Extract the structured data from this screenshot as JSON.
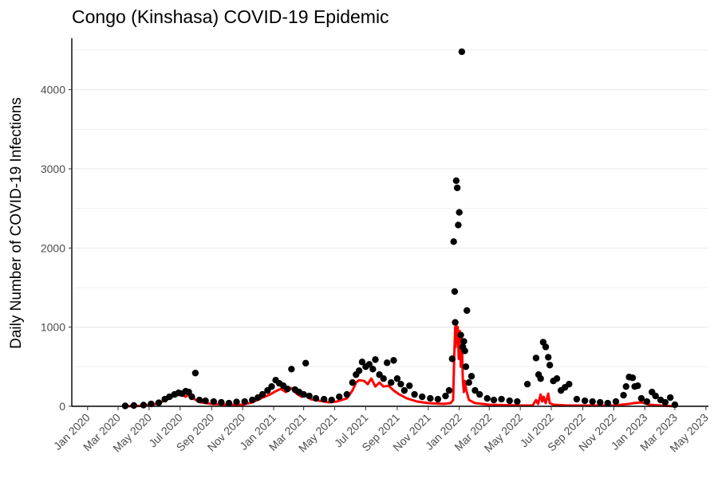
{
  "chart_data": {
    "type": "scatter",
    "title": "Congo (Kinshasa) COVID-19 Epidemic",
    "xlabel": "",
    "ylabel": "Daily Number of COVID-19 Infections",
    "xlim": [
      "2019-12-01",
      "2023-05-06"
    ],
    "ylim": [
      0,
      4650
    ],
    "y_ticks": [
      0,
      1000,
      2000,
      3000,
      4000
    ],
    "x_ticks": [
      {
        "date": "2020-01-01",
        "label": "Jan 2020"
      },
      {
        "date": "2020-03-01",
        "label": "Mar 2020"
      },
      {
        "date": "2020-05-01",
        "label": "May 2020"
      },
      {
        "date": "2020-07-01",
        "label": "Jul 2020"
      },
      {
        "date": "2020-09-01",
        "label": "Sep 2020"
      },
      {
        "date": "2020-11-01",
        "label": "Nov 2020"
      },
      {
        "date": "2021-01-01",
        "label": "Jan 2021"
      },
      {
        "date": "2021-03-01",
        "label": "Mar 2021"
      },
      {
        "date": "2021-05-01",
        "label": "May 2021"
      },
      {
        "date": "2021-07-01",
        "label": "Jul 2021"
      },
      {
        "date": "2021-09-01",
        "label": "Sep 2021"
      },
      {
        "date": "2021-11-01",
        "label": "Nov 2021"
      },
      {
        "date": "2022-01-01",
        "label": "Jan 2022"
      },
      {
        "date": "2022-03-01",
        "label": "Mar 2022"
      },
      {
        "date": "2022-05-01",
        "label": "May 2022"
      },
      {
        "date": "2022-07-01",
        "label": "Jul 2022"
      },
      {
        "date": "2022-09-01",
        "label": "Sep 2022"
      },
      {
        "date": "2022-11-01",
        "label": "Nov 2022"
      },
      {
        "date": "2023-01-01",
        "label": "Jan 2023"
      },
      {
        "date": "2023-03-01",
        "label": "Mar 2023"
      },
      {
        "date": "2023-05-01",
        "label": "May 2023"
      }
    ],
    "grid": true,
    "colors": {
      "points": "#000000",
      "line": "#ff0000",
      "grid": "#ebebeb",
      "axis": "#000000"
    },
    "series": [
      {
        "type": "scatter",
        "points": [
          [
            "2020-03-15",
            5
          ],
          [
            "2020-04-01",
            10
          ],
          [
            "2020-04-20",
            15
          ],
          [
            "2020-05-05",
            30
          ],
          [
            "2020-05-20",
            45
          ],
          [
            "2020-06-01",
            90
          ],
          [
            "2020-06-10",
            120
          ],
          [
            "2020-06-20",
            150
          ],
          [
            "2020-06-28",
            170
          ],
          [
            "2020-07-05",
            160
          ],
          [
            "2020-07-12",
            190
          ],
          [
            "2020-07-18",
            180
          ],
          [
            "2020-07-24",
            120
          ],
          [
            "2020-07-31",
            420
          ],
          [
            "2020-08-08",
            80
          ],
          [
            "2020-08-20",
            70
          ],
          [
            "2020-09-05",
            60
          ],
          [
            "2020-09-20",
            50
          ],
          [
            "2020-10-05",
            40
          ],
          [
            "2020-10-20",
            55
          ],
          [
            "2020-11-05",
            60
          ],
          [
            "2020-11-20",
            80
          ],
          [
            "2020-12-01",
            110
          ],
          [
            "2020-12-10",
            150
          ],
          [
            "2020-12-20",
            200
          ],
          [
            "2020-12-28",
            250
          ],
          [
            "2021-01-05",
            330
          ],
          [
            "2021-01-12",
            290
          ],
          [
            "2021-01-20",
            260
          ],
          [
            "2021-01-28",
            220
          ],
          [
            "2021-02-05",
            470
          ],
          [
            "2021-02-12",
            210
          ],
          [
            "2021-02-20",
            180
          ],
          [
            "2021-03-01",
            150
          ],
          [
            "2021-03-05",
            545
          ],
          [
            "2021-03-12",
            130
          ],
          [
            "2021-03-25",
            100
          ],
          [
            "2021-04-10",
            90
          ],
          [
            "2021-04-25",
            80
          ],
          [
            "2021-05-10",
            120
          ],
          [
            "2021-05-25",
            150
          ],
          [
            "2021-06-05",
            300
          ],
          [
            "2021-06-12",
            400
          ],
          [
            "2021-06-18",
            450
          ],
          [
            "2021-06-24",
            560
          ],
          [
            "2021-07-01",
            500
          ],
          [
            "2021-07-08",
            530
          ],
          [
            "2021-07-15",
            470
          ],
          [
            "2021-07-20",
            590
          ],
          [
            "2021-07-28",
            400
          ],
          [
            "2021-08-05",
            350
          ],
          [
            "2021-08-12",
            550
          ],
          [
            "2021-08-20",
            300
          ],
          [
            "2021-08-25",
            580
          ],
          [
            "2021-09-01",
            350
          ],
          [
            "2021-09-08",
            280
          ],
          [
            "2021-09-15",
            200
          ],
          [
            "2021-09-25",
            260
          ],
          [
            "2021-10-05",
            150
          ],
          [
            "2021-10-20",
            120
          ],
          [
            "2021-11-05",
            100
          ],
          [
            "2021-11-20",
            90
          ],
          [
            "2021-12-05",
            130
          ],
          [
            "2021-12-12",
            200
          ],
          [
            "2021-12-18",
            600
          ],
          [
            "2021-12-21",
            2080
          ],
          [
            "2021-12-23",
            1450
          ],
          [
            "2021-12-24",
            1060
          ],
          [
            "2021-12-26",
            2850
          ],
          [
            "2021-12-28",
            2760
          ],
          [
            "2021-12-30",
            2290
          ],
          [
            "2022-01-01",
            2450
          ],
          [
            "2022-01-04",
            900
          ],
          [
            "2022-01-06",
            4480
          ],
          [
            "2022-01-08",
            750
          ],
          [
            "2022-01-10",
            820
          ],
          [
            "2022-01-12",
            700
          ],
          [
            "2022-01-14",
            500
          ],
          [
            "2022-01-16",
            1210
          ],
          [
            "2022-01-20",
            300
          ],
          [
            "2022-01-25",
            380
          ],
          [
            "2022-02-01",
            200
          ],
          [
            "2022-02-10",
            150
          ],
          [
            "2022-02-25",
            100
          ],
          [
            "2022-03-10",
            80
          ],
          [
            "2022-03-25",
            90
          ],
          [
            "2022-04-10",
            70
          ],
          [
            "2022-04-25",
            60
          ],
          [
            "2022-05-15",
            280
          ],
          [
            "2022-06-01",
            610
          ],
          [
            "2022-06-06",
            400
          ],
          [
            "2022-06-10",
            350
          ],
          [
            "2022-06-15",
            810
          ],
          [
            "2022-06-20",
            750
          ],
          [
            "2022-06-25",
            620
          ],
          [
            "2022-06-28",
            520
          ],
          [
            "2022-07-05",
            320
          ],
          [
            "2022-07-12",
            350
          ],
          [
            "2022-07-20",
            200
          ],
          [
            "2022-07-28",
            240
          ],
          [
            "2022-08-05",
            280
          ],
          [
            "2022-08-20",
            90
          ],
          [
            "2022-09-05",
            70
          ],
          [
            "2022-09-20",
            60
          ],
          [
            "2022-10-05",
            50
          ],
          [
            "2022-10-20",
            40
          ],
          [
            "2022-11-05",
            60
          ],
          [
            "2022-11-20",
            140
          ],
          [
            "2022-11-25",
            250
          ],
          [
            "2022-12-01",
            370
          ],
          [
            "2022-12-08",
            360
          ],
          [
            "2022-12-12",
            250
          ],
          [
            "2022-12-18",
            260
          ],
          [
            "2022-12-25",
            100
          ],
          [
            "2023-01-05",
            60
          ],
          [
            "2023-01-15",
            180
          ],
          [
            "2023-01-22",
            130
          ],
          [
            "2023-02-01",
            80
          ],
          [
            "2023-02-10",
            50
          ],
          [
            "2023-02-20",
            110
          ],
          [
            "2023-03-01",
            20
          ]
        ]
      },
      {
        "type": "line",
        "points": [
          [
            "2020-03-10",
            0
          ],
          [
            "2020-04-15",
            5
          ],
          [
            "2020-05-15",
            30
          ],
          [
            "2020-06-01",
            70
          ],
          [
            "2020-06-15",
            120
          ],
          [
            "2020-06-25",
            140
          ],
          [
            "2020-07-05",
            150
          ],
          [
            "2020-07-12",
            120
          ],
          [
            "2020-07-18",
            150
          ],
          [
            "2020-07-25",
            110
          ],
          [
            "2020-08-01",
            80
          ],
          [
            "2020-08-10",
            50
          ],
          [
            "2020-09-01",
            30
          ],
          [
            "2020-10-01",
            20
          ],
          [
            "2020-11-01",
            20
          ],
          [
            "2020-11-20",
            50
          ],
          [
            "2020-12-10",
            110
          ],
          [
            "2020-12-25",
            150
          ],
          [
            "2021-01-05",
            190
          ],
          [
            "2021-01-15",
            220
          ],
          [
            "2021-01-25",
            180
          ],
          [
            "2021-02-05",
            230
          ],
          [
            "2021-02-15",
            160
          ],
          [
            "2021-02-25",
            120
          ],
          [
            "2021-03-05",
            150
          ],
          [
            "2021-03-15",
            90
          ],
          [
            "2021-04-01",
            70
          ],
          [
            "2021-04-20",
            50
          ],
          [
            "2021-05-05",
            60
          ],
          [
            "2021-05-25",
            100
          ],
          [
            "2021-06-05",
            200
          ],
          [
            "2021-06-12",
            300
          ],
          [
            "2021-06-18",
            330
          ],
          [
            "2021-06-28",
            320
          ],
          [
            "2021-07-05",
            280
          ],
          [
            "2021-07-12",
            350
          ],
          [
            "2021-07-20",
            250
          ],
          [
            "2021-07-28",
            300
          ],
          [
            "2021-08-05",
            250
          ],
          [
            "2021-08-15",
            260
          ],
          [
            "2021-08-25",
            200
          ],
          [
            "2021-09-05",
            150
          ],
          [
            "2021-09-20",
            100
          ],
          [
            "2021-10-10",
            60
          ],
          [
            "2021-11-01",
            40
          ],
          [
            "2021-12-01",
            30
          ],
          [
            "2021-12-15",
            40
          ],
          [
            "2021-12-20",
            80
          ],
          [
            "2021-12-22",
            600
          ],
          [
            "2021-12-24",
            1000
          ],
          [
            "2021-12-25",
            750
          ],
          [
            "2021-12-26",
            1050
          ],
          [
            "2021-12-27",
            800
          ],
          [
            "2021-12-29",
            1000
          ],
          [
            "2021-12-31",
            600
          ],
          [
            "2022-01-02",
            950
          ],
          [
            "2022-01-04",
            500
          ],
          [
            "2022-01-06",
            850
          ],
          [
            "2022-01-08",
            350
          ],
          [
            "2022-01-10",
            180
          ],
          [
            "2022-01-12",
            320
          ],
          [
            "2022-01-15",
            200
          ],
          [
            "2022-01-20",
            80
          ],
          [
            "2022-02-01",
            40
          ],
          [
            "2022-03-01",
            20
          ],
          [
            "2022-05-01",
            10
          ],
          [
            "2022-05-25",
            10
          ],
          [
            "2022-06-01",
            80
          ],
          [
            "2022-06-05",
            30
          ],
          [
            "2022-06-10",
            150
          ],
          [
            "2022-06-13",
            60
          ],
          [
            "2022-06-16",
            120
          ],
          [
            "2022-06-20",
            40
          ],
          [
            "2022-06-25",
            160
          ],
          [
            "2022-06-28",
            40
          ],
          [
            "2022-07-05",
            20
          ],
          [
            "2022-08-01",
            10
          ],
          [
            "2022-09-01",
            10
          ],
          [
            "2022-11-01",
            10
          ],
          [
            "2022-12-01",
            30
          ],
          [
            "2022-12-10",
            40
          ],
          [
            "2022-12-25",
            50
          ],
          [
            "2023-01-10",
            20
          ],
          [
            "2023-02-01",
            10
          ],
          [
            "2023-03-01",
            0
          ]
        ]
      }
    ]
  }
}
